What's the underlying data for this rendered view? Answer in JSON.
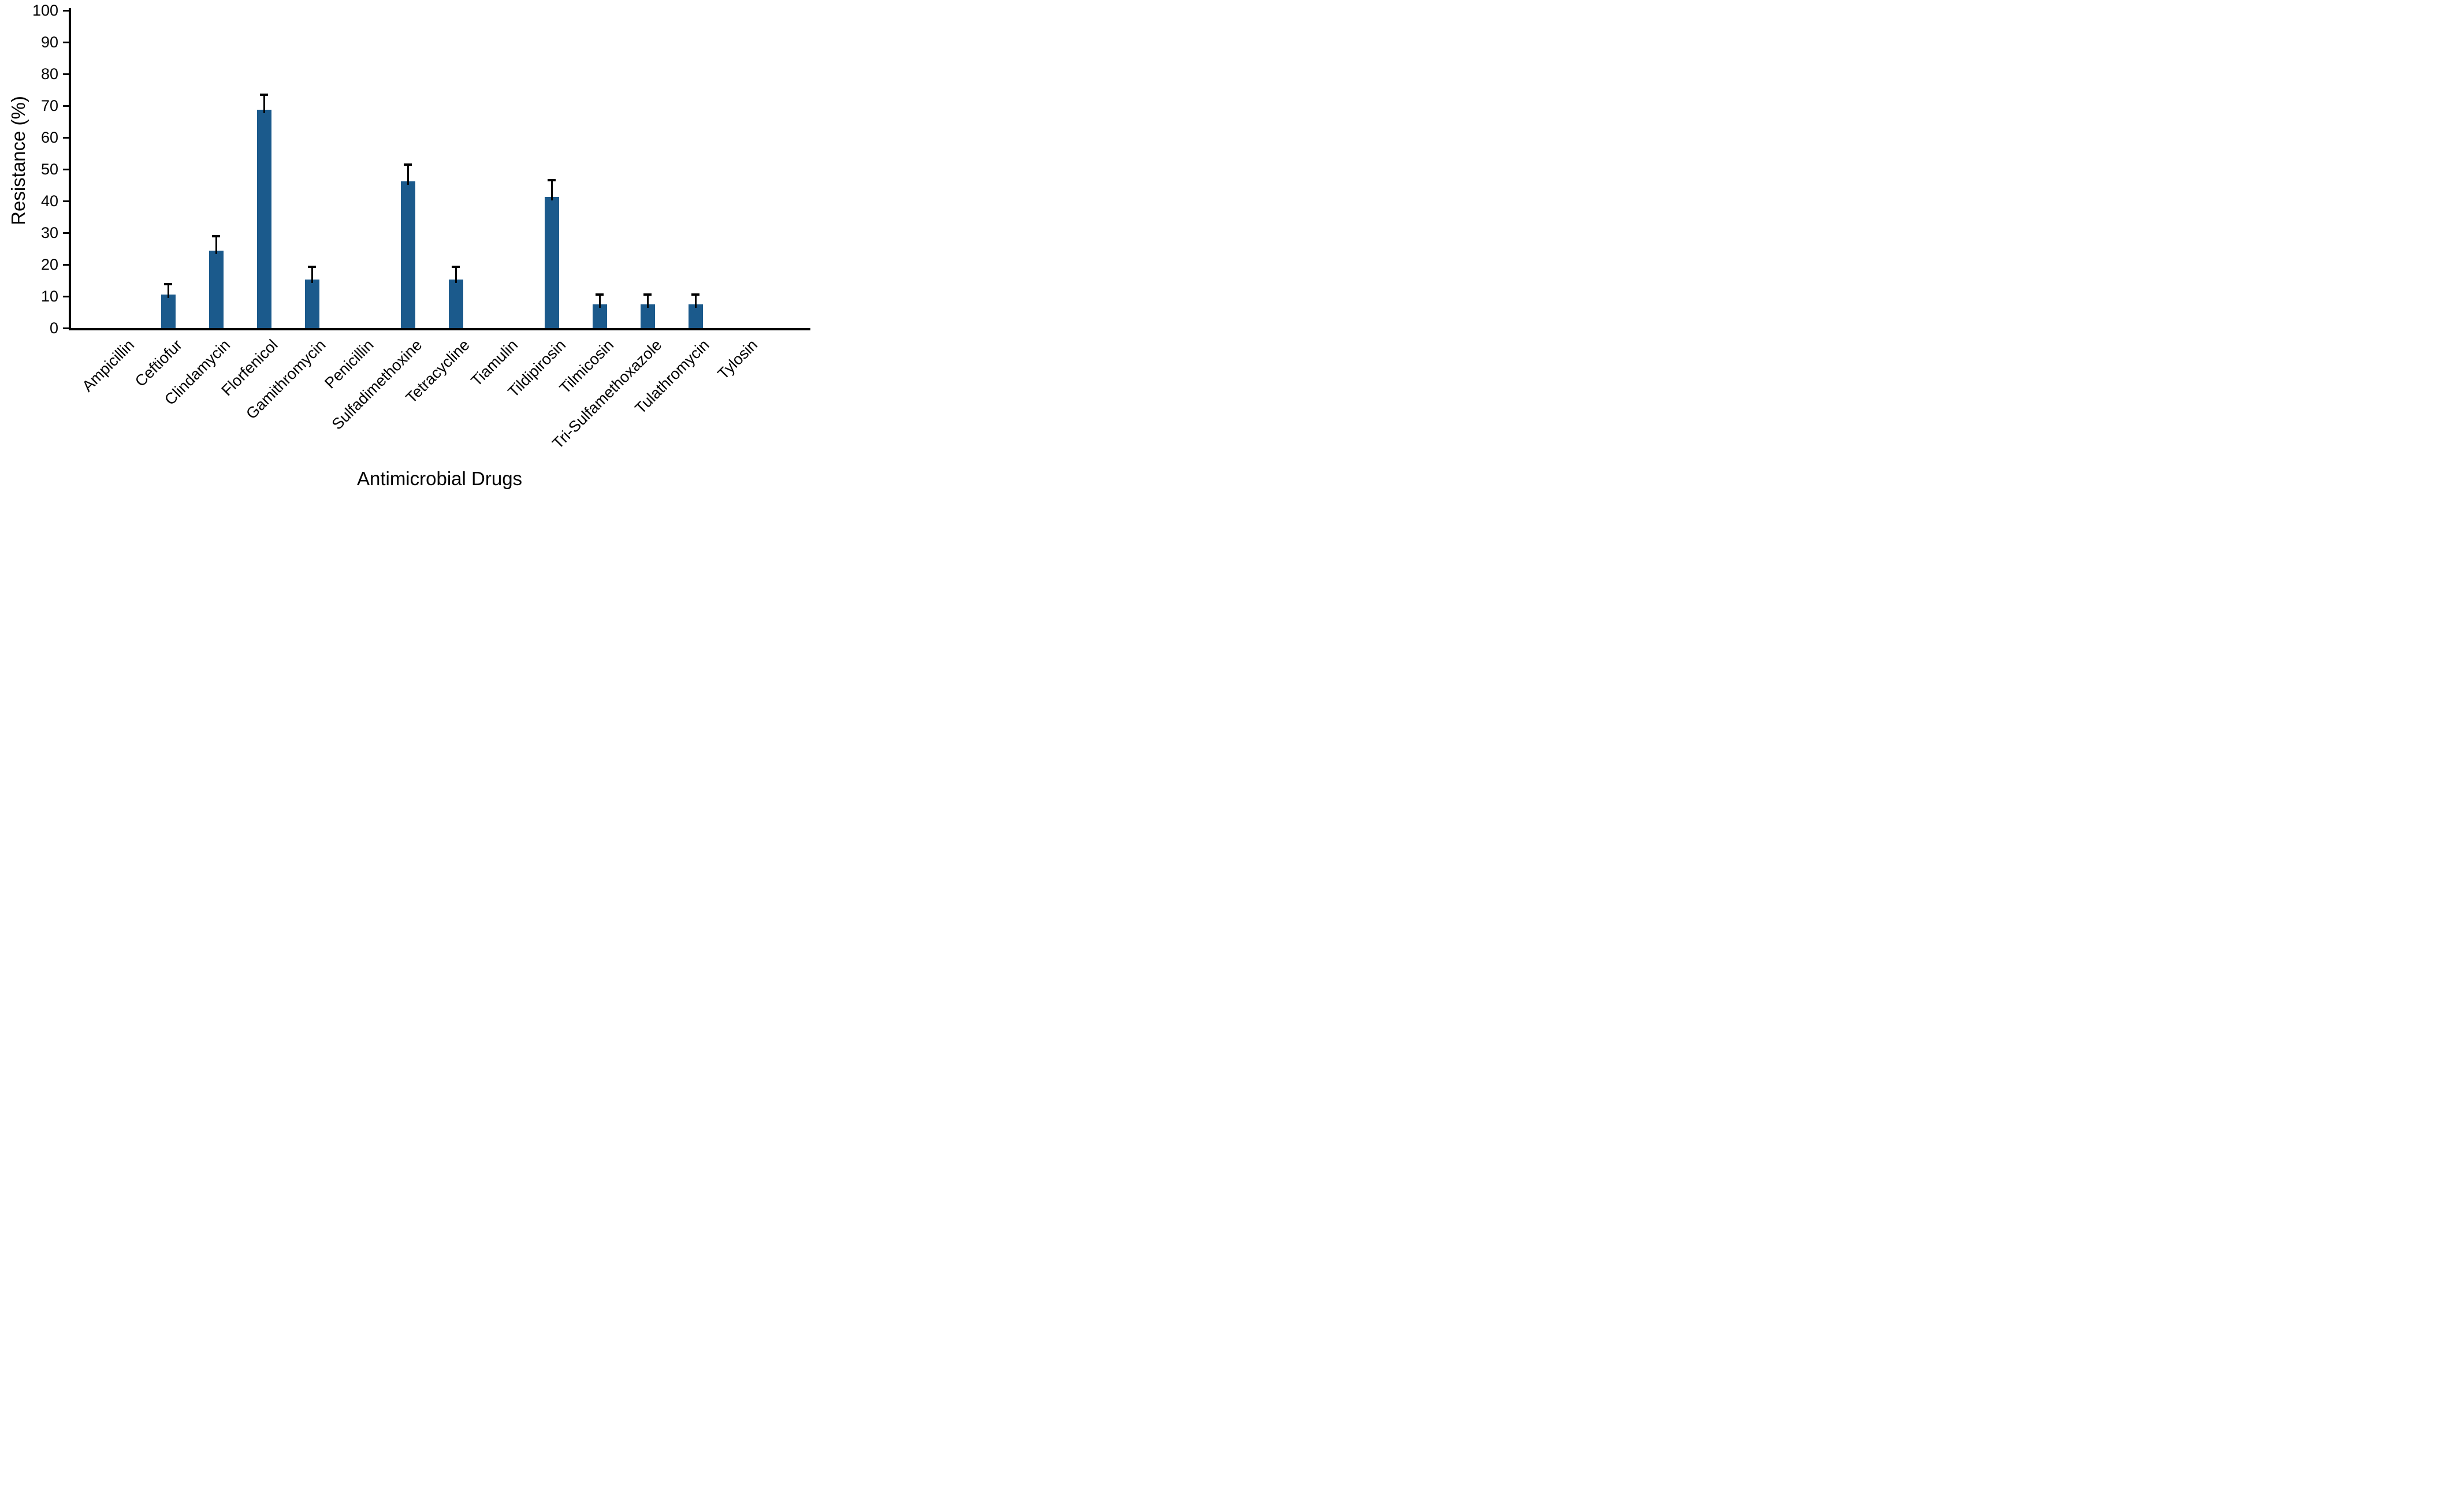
{
  "figure": {
    "ylabel": "Resistance (%)",
    "xlabel": "Antimicrobial Drugs"
  },
  "chart_data": {
    "type": "bar",
    "title": "",
    "xlabel": "Antimicrobial Drugs",
    "ylabel": "Resistance (%)",
    "ylim": [
      0,
      100
    ],
    "yticks": [
      0,
      10,
      20,
      30,
      40,
      50,
      60,
      70,
      80,
      90,
      100
    ],
    "grid": false,
    "legend": "none",
    "bar_color": "#1b5a8c",
    "error_color": "#000000",
    "error_direction": "upper-only",
    "categories": [
      "Ampicillin",
      "Ceftiofur",
      "Clindamycin",
      "Florfenicol",
      "Gamithromycin",
      "Penicillin",
      "Sulfadimethoxine",
      "Tetracycline",
      "Tiamulin",
      "Tildipirosin",
      "Tilmicosin",
      "Tri-Sulfamethoxazole",
      "Tulathromycin",
      "Tylosin"
    ],
    "values": [
      0,
      10.6,
      24.4,
      68.7,
      15.3,
      0,
      46.1,
      15.3,
      0,
      41.3,
      7.5,
      7.5,
      7.5,
      0
    ],
    "errors_upper": [
      0,
      3.2,
      4.5,
      4.8,
      4.0,
      0,
      5.4,
      3.9,
      0,
      5.2,
      3.0,
      3.0,
      3.0,
      0
    ]
  }
}
